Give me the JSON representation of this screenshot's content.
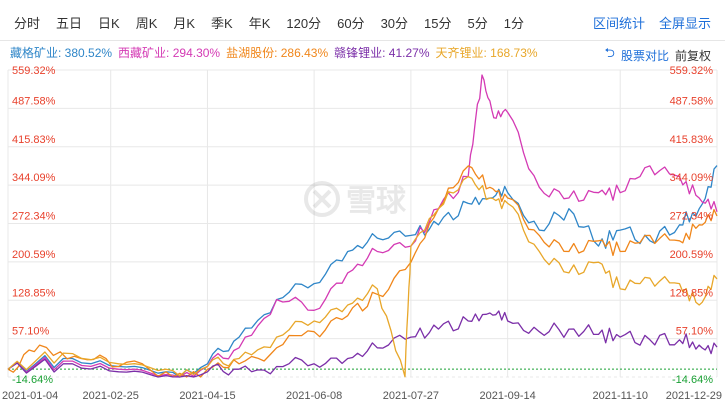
{
  "toolbar": {
    "tabs": [
      "分时",
      "五日",
      "日K",
      "周K",
      "月K",
      "季K",
      "年K",
      "120分",
      "60分",
      "30分",
      "15分",
      "5分",
      "1分"
    ],
    "actions": [
      "区间统计",
      "全屏显示"
    ]
  },
  "controls": {
    "compare_label": "股票对比",
    "restore_label": "前复权",
    "undo_icon": "undo-icon"
  },
  "watermark": {
    "text": "雪球",
    "icon": "snowball-logo-icon"
  },
  "colors": {
    "grid": "#e8e8e8",
    "up": "#e8412c",
    "down": "#1aa034",
    "base_line": "#1aa034"
  },
  "chart_data": {
    "type": "line",
    "x_ticks": [
      "2021-01-04",
      "2021-02-25",
      "2021-04-15",
      "2021-06-08",
      "2021-07-27",
      "2021-09-14",
      "2021-11-10",
      "2021-12-29"
    ],
    "x_range": [
      "2021-01-04",
      "2021-12-29"
    ],
    "ylim": [
      -14.64,
      559.32
    ],
    "y_ticks": [
      559.32,
      487.58,
      415.83,
      344.09,
      272.34,
      200.59,
      128.85,
      57.1,
      -14.64
    ],
    "y_tick_labels": [
      "559.32%",
      "487.58%",
      "415.83%",
      "344.09%",
      "272.34%",
      "200.59%",
      "128.85%",
      "57.10%",
      "-14.64%"
    ],
    "grid": true,
    "legend_position": "top-left",
    "series": [
      {
        "name": "藏格矿业",
        "label": "藏格矿业: 380.52%",
        "color": "#2f86c8",
        "x": [
          "2021-01-04",
          "2021-02-01",
          "2021-03-01",
          "2021-03-25",
          "2021-04-15",
          "2021-05-01",
          "2021-05-20",
          "2021-06-08",
          "2021-06-25",
          "2021-07-10",
          "2021-07-27",
          "2021-08-10",
          "2021-08-25",
          "2021-09-05",
          "2021-09-14",
          "2021-09-30",
          "2021-10-15",
          "2021-10-30",
          "2021-11-10",
          "2021-11-25",
          "2021-12-10",
          "2021-12-20",
          "2021-12-29"
        ],
        "y": [
          0,
          20,
          5,
          -5,
          10,
          60,
          130,
          160,
          220,
          245,
          250,
          270,
          310,
          320,
          330,
          260,
          300,
          230,
          260,
          240,
          270,
          300,
          380.52
        ]
      },
      {
        "name": "西藏矿业",
        "label": "西藏矿业: 294.30%",
        "color": "#d43ab4",
        "x": [
          "2021-01-04",
          "2021-02-01",
          "2021-03-01",
          "2021-03-25",
          "2021-04-15",
          "2021-05-01",
          "2021-05-20",
          "2021-06-08",
          "2021-06-25",
          "2021-07-10",
          "2021-07-27",
          "2021-08-10",
          "2021-08-25",
          "2021-09-01",
          "2021-09-07",
          "2021-09-14",
          "2021-09-30",
          "2021-10-15",
          "2021-10-30",
          "2021-11-10",
          "2021-11-25",
          "2021-12-10",
          "2021-12-20",
          "2021-12-29"
        ],
        "y": [
          0,
          15,
          0,
          -10,
          5,
          40,
          130,
          110,
          180,
          220,
          230,
          300,
          360,
          550,
          470,
          480,
          340,
          320,
          330,
          330,
          380,
          360,
          320,
          294.3
        ]
      },
      {
        "name": "盐湖股份",
        "label": "盐湖股份: 286.43%",
        "color": "#f0861a",
        "x": [
          "2021-01-04",
          "2021-01-20",
          "2021-02-10",
          "2021-03-01",
          "2021-03-25",
          "2021-04-15",
          "2021-05-01",
          "2021-05-20",
          "2021-06-08",
          "2021-06-25",
          "2021-07-10",
          "2021-07-27",
          "2021-08-10",
          "2021-08-25",
          "2021-09-05",
          "2021-09-14",
          "2021-09-30",
          "2021-10-15",
          "2021-10-30",
          "2021-11-10",
          "2021-11-25",
          "2021-12-10",
          "2021-12-20",
          "2021-12-29"
        ],
        "y": [
          0,
          45,
          20,
          5,
          -5,
          0,
          10,
          40,
          70,
          100,
          140,
          200,
          300,
          380,
          340,
          320,
          250,
          220,
          240,
          220,
          250,
          240,
          270,
          286.43
        ]
      },
      {
        "name": "赣锋锂业",
        "label": "赣锋锂业: 41.27%",
        "color": "#7b2fa8",
        "x": [
          "2021-01-04",
          "2021-02-01",
          "2021-03-01",
          "2021-03-25",
          "2021-04-15",
          "2021-05-01",
          "2021-05-20",
          "2021-06-08",
          "2021-06-25",
          "2021-07-10",
          "2021-07-27",
          "2021-08-10",
          "2021-08-25",
          "2021-09-05",
          "2021-09-14",
          "2021-09-30",
          "2021-10-15",
          "2021-10-30",
          "2021-11-10",
          "2021-11-25",
          "2021-12-10",
          "2021-12-20",
          "2021-12-29"
        ],
        "y": [
          0,
          10,
          -5,
          -12,
          -5,
          0,
          5,
          10,
          20,
          40,
          60,
          75,
          90,
          105,
          90,
          70,
          75,
          65,
          60,
          55,
          55,
          45,
          41.27
        ]
      },
      {
        "name": "天齐锂业",
        "label": "天齐锂业: 168.73%",
        "color": "#e8a72a",
        "x": [
          "2021-01-04",
          "2021-02-01",
          "2021-03-01",
          "2021-03-25",
          "2021-04-15",
          "2021-05-01",
          "2021-05-20",
          "2021-06-08",
          "2021-06-25",
          "2021-07-10",
          "2021-07-24",
          "2021-07-27",
          "2021-08-10",
          "2021-08-25",
          "2021-09-05",
          "2021-09-14",
          "2021-09-30",
          "2021-10-15",
          "2021-10-30",
          "2021-11-10",
          "2021-11-25",
          "2021-12-10",
          "2021-12-20",
          "2021-12-29"
        ],
        "y": [
          0,
          30,
          10,
          0,
          5,
          20,
          60,
          90,
          120,
          150,
          -14,
          230,
          300,
          360,
          320,
          310,
          220,
          180,
          200,
          150,
          170,
          160,
          120,
          168.73
        ]
      }
    ]
  }
}
